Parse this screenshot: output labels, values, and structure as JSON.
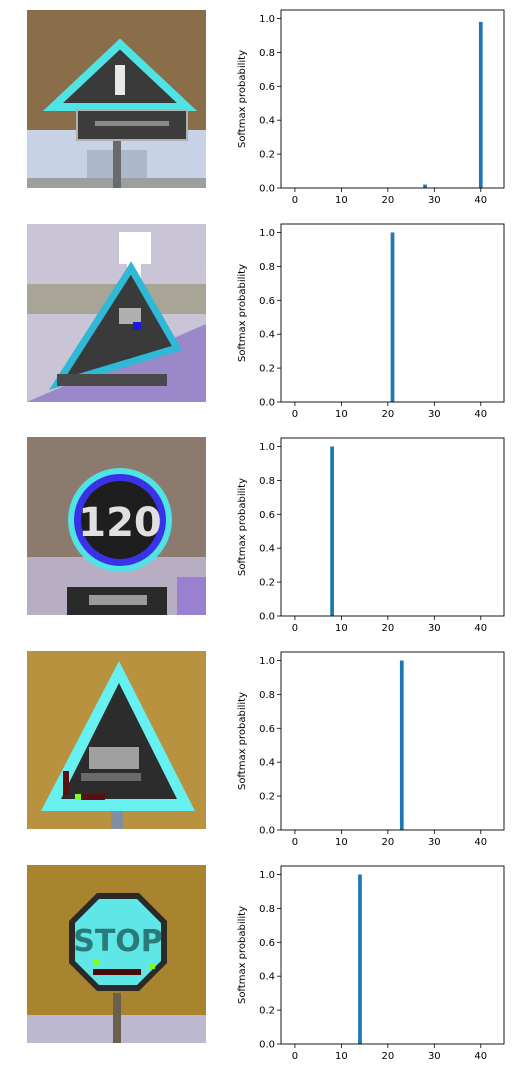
{
  "ylabel": "Softmax probability",
  "bar_color": "#1f77b4",
  "images": [
    {
      "sign": "warning-triangle-sign-with-plate",
      "bg": "#8a6e4a",
      "accent": "#4fe3e3"
    },
    {
      "sign": "warning-triangle-sign",
      "bg": "#c9c4d6",
      "accent": "#2fb9d6"
    },
    {
      "sign": "speed-limit-120-sign",
      "text": "120",
      "bg": "#8c7a6e",
      "accent": "#3a32e6"
    },
    {
      "sign": "warning-triangle-slippery-road-sign",
      "bg": "#b8923e",
      "accent": "#66f0f0"
    },
    {
      "sign": "stop-sign",
      "text": "STOP",
      "bg": "#a8842e",
      "accent": "#5fe6e6"
    }
  ],
  "chart_data": [
    {
      "type": "bar",
      "xlabel": "",
      "ylabel": "Softmax probability",
      "xlim": [
        -3,
        45
      ],
      "ylim": [
        0,
        1.05
      ],
      "xticks": [
        0,
        10,
        20,
        30,
        40
      ],
      "yticks": [
        0.0,
        0.2,
        0.4,
        0.6,
        0.8,
        1.0
      ],
      "x": [
        28,
        40
      ],
      "values": [
        0.02,
        0.98
      ]
    },
    {
      "type": "bar",
      "xlabel": "",
      "ylabel": "Softmax probability",
      "xlim": [
        -3,
        45
      ],
      "ylim": [
        0,
        1.05
      ],
      "xticks": [
        0,
        10,
        20,
        30,
        40
      ],
      "yticks": [
        0.0,
        0.2,
        0.4,
        0.6,
        0.8,
        1.0
      ],
      "x": [
        21
      ],
      "values": [
        1.0
      ]
    },
    {
      "type": "bar",
      "xlabel": "",
      "ylabel": "Softmax probability",
      "xlim": [
        -3,
        45
      ],
      "ylim": [
        0,
        1.05
      ],
      "xticks": [
        0,
        10,
        20,
        30,
        40
      ],
      "yticks": [
        0.0,
        0.2,
        0.4,
        0.6,
        0.8,
        1.0
      ],
      "x": [
        8
      ],
      "values": [
        1.0
      ]
    },
    {
      "type": "bar",
      "xlabel": "",
      "ylabel": "Softmax probability",
      "xlim": [
        -3,
        45
      ],
      "ylim": [
        0,
        1.05
      ],
      "xticks": [
        0,
        10,
        20,
        30,
        40
      ],
      "yticks": [
        0.0,
        0.2,
        0.4,
        0.6,
        0.8,
        1.0
      ],
      "x": [
        23
      ],
      "values": [
        1.0
      ]
    },
    {
      "type": "bar",
      "xlabel": "",
      "ylabel": "Softmax probability",
      "xlim": [
        -3,
        45
      ],
      "ylim": [
        0,
        1.05
      ],
      "xticks": [
        0,
        10,
        20,
        30,
        40
      ],
      "yticks": [
        0.0,
        0.2,
        0.4,
        0.6,
        0.8,
        1.0
      ],
      "x": [
        14
      ],
      "values": [
        1.0
      ]
    }
  ]
}
